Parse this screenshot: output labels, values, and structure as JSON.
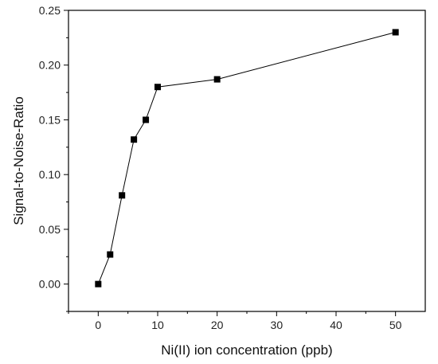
{
  "chart_data": {
    "type": "line",
    "title": "",
    "xlabel": "Ni(II) ion concentration (ppb)",
    "ylabel": "Signal-to-Noise-Ratio",
    "xlim": [
      -5,
      55
    ],
    "ylim": [
      -0.025,
      0.25
    ],
    "x_ticks": [
      0,
      10,
      20,
      30,
      40,
      50
    ],
    "x_tick_labels": [
      "0",
      "10",
      "20",
      "30",
      "40",
      "50"
    ],
    "y_ticks": [
      0.0,
      0.05,
      0.1,
      0.15,
      0.2,
      0.25
    ],
    "y_tick_labels": [
      "0.00",
      "0.05",
      "0.10",
      "0.15",
      "0.20",
      "0.25"
    ],
    "grid": false,
    "legend": "none",
    "marker": "square",
    "color": "#000000",
    "series": [
      {
        "x": [
          0,
          2,
          4,
          6,
          8,
          10,
          20,
          50
        ],
        "y": [
          0.0,
          0.027,
          0.081,
          0.132,
          0.15,
          0.18,
          0.187,
          0.23
        ]
      }
    ]
  }
}
